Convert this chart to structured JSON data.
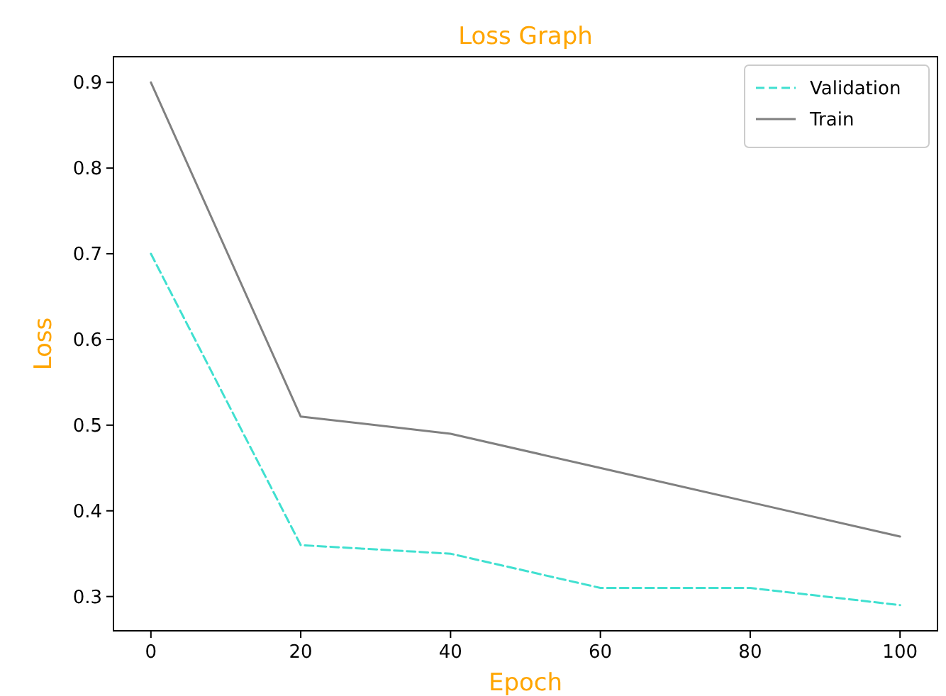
{
  "chart_data": {
    "type": "line",
    "title": "Loss Graph",
    "xlabel": "Epoch",
    "ylabel": "Loss",
    "x": [
      0,
      20,
      40,
      60,
      80,
      100
    ],
    "series": [
      {
        "name": "Validation",
        "color": "#40e0d0",
        "line_style": "dashed",
        "values": [
          0.7,
          0.36,
          0.35,
          0.31,
          0.31,
          0.29
        ]
      },
      {
        "name": "Train",
        "color": "#808080",
        "line_style": "solid",
        "values": [
          0.9,
          0.51,
          0.49,
          0.45,
          0.41,
          0.37
        ]
      }
    ],
    "xlim": [
      -5,
      105
    ],
    "xticks": [
      0,
      20,
      40,
      60,
      80,
      100
    ],
    "ylim": [
      0.26,
      0.93
    ],
    "yticks": [
      {
        "value": 0.3,
        "label": "0.3"
      },
      {
        "value": 0.4,
        "label": "0.4"
      },
      {
        "value": 0.5,
        "label": "0.5"
      },
      {
        "value": 0.6,
        "label": "0.6"
      },
      {
        "value": 0.7,
        "label": "0.7"
      },
      {
        "value": 0.8,
        "label": "0.8"
      },
      {
        "value": 0.9,
        "label": "0.9"
      }
    ],
    "grid": false,
    "legend": "top right"
  }
}
